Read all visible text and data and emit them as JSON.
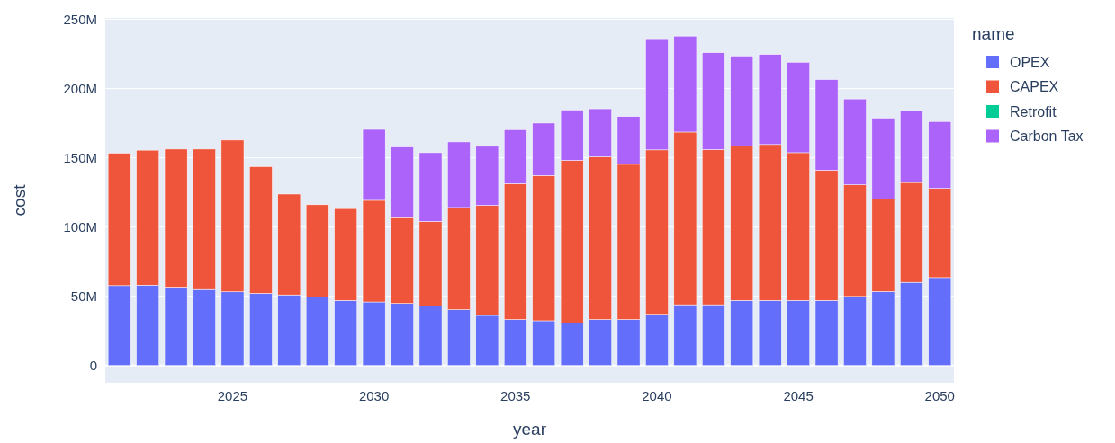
{
  "chart_data": {
    "type": "bar",
    "stacked": true,
    "xlabel": "year",
    "ylabel": "cost",
    "legend_title": "name",
    "legend": "right",
    "grid": "y",
    "x": [
      2021,
      2022,
      2023,
      2024,
      2025,
      2026,
      2027,
      2028,
      2029,
      2030,
      2031,
      2032,
      2033,
      2034,
      2035,
      2036,
      2037,
      2038,
      2039,
      2040,
      2041,
      2042,
      2043,
      2044,
      2045,
      2046,
      2047,
      2048,
      2049,
      2050
    ],
    "xlim": [
      2020.5,
      2050.5
    ],
    "xticks": [
      2025,
      2030,
      2035,
      2040,
      2045,
      2050
    ],
    "ylim": [
      -12500000,
      251000000
    ],
    "yticks": [
      {
        "value": 0,
        "label": "0"
      },
      {
        "value": 50000000,
        "label": "50M"
      },
      {
        "value": 100000000,
        "label": "100M"
      },
      {
        "value": 150000000,
        "label": "150M"
      },
      {
        "value": 200000000,
        "label": "200M"
      },
      {
        "value": 250000000,
        "label": "250M"
      }
    ],
    "series": [
      {
        "name": "OPEX",
        "color": "#636efa",
        "values": [
          57700000,
          58100000,
          56600000,
          54900000,
          53200000,
          52100000,
          51000000,
          49500000,
          47000000,
          45900000,
          44800000,
          43100000,
          40300000,
          36200000,
          33200000,
          32300000,
          30800000,
          33200000,
          33200000,
          37000000,
          43900000,
          43900000,
          47000000,
          47000000,
          47000000,
          47000000,
          49900000,
          53400000,
          60100000,
          63500000
        ]
      },
      {
        "name": "CAPEX",
        "color": "#ef553b",
        "values": [
          95600000,
          97400000,
          99700000,
          101400000,
          109600000,
          91500000,
          72800000,
          66600000,
          66300000,
          73400000,
          62000000,
          60900000,
          73800000,
          79400000,
          98100000,
          104900000,
          117300000,
          117500000,
          112100000,
          118700000,
          124700000,
          112000000,
          111700000,
          112600000,
          106700000,
          94000000,
          80600000,
          66900000,
          72100000,
          64400000
        ]
      },
      {
        "name": "Retrofit",
        "color": "#00cc96",
        "values": [
          0,
          0,
          0,
          0,
          0,
          0,
          0,
          0,
          0,
          0,
          0,
          0,
          0,
          0,
          0,
          0,
          0,
          0,
          0,
          0,
          0,
          0,
          0,
          0,
          0,
          0,
          0,
          0,
          0,
          0
        ]
      },
      {
        "name": "Carbon Tax",
        "color": "#ab63fa",
        "values": [
          0,
          0,
          0,
          0,
          0,
          0,
          0,
          0,
          0,
          51200000,
          51000000,
          49700000,
          47400000,
          42700000,
          39000000,
          37900000,
          36400000,
          34700000,
          34500000,
          80300000,
          69300000,
          70000000,
          64800000,
          65000000,
          65300000,
          65500000,
          62000000,
          58400000,
          51500000,
          48300000
        ]
      }
    ]
  }
}
